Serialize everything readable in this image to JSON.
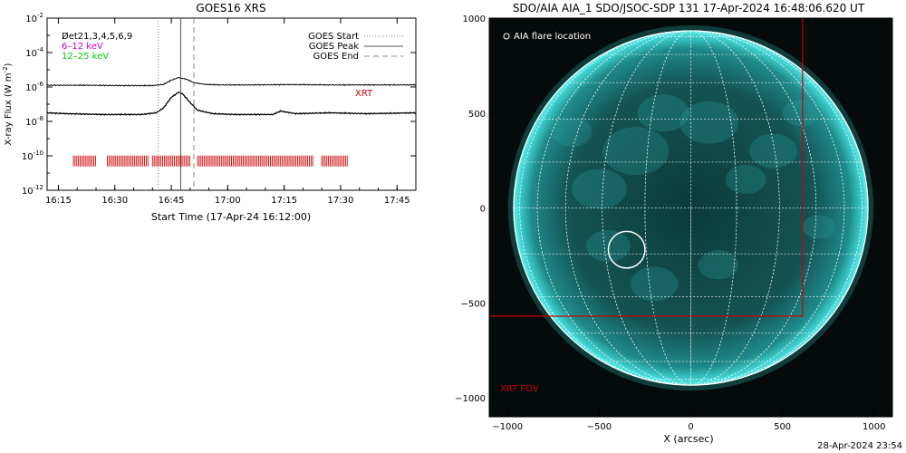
{
  "left_panel": {
    "title": "GOES16 XRS",
    "ylabel": "X-ray Flux (W m",
    "ylabel_sup": "-2",
    "ylabel_close": ")",
    "xlabel": "Start Time (17-Apr-24 16:12:00)",
    "legend_left": [
      {
        "text": "D̸et21,3,4,5,6,9",
        "color": "#000000"
      },
      {
        "text": "6–12 keV",
        "color": "#cc00cc"
      },
      {
        "text": "12–25 keV",
        "color": "#00cc00"
      }
    ],
    "legend_right": [
      {
        "text": "GOES Start",
        "dash": "dotted"
      },
      {
        "text": "GOES Peak",
        "dash": "solid"
      },
      {
        "text": "GOES End",
        "dash": "dashed"
      }
    ],
    "xrt_label": "XRT",
    "xrt_color": "#cc0000"
  },
  "right_panel": {
    "title": "SDO/AIA AIA_1 SDO/JSOC-SDP 131 17-Apr-2024 16:48:06.620 UT",
    "xlabel": "X (arcsec)",
    "flare_label": "AIA flare location",
    "fov_label": "XRT FOV",
    "fov_color": "#cc0000",
    "disk_color": "#1aa3a3"
  },
  "footer_timestamp": "28-Apr-2024 23:54",
  "chart_data": [
    {
      "type": "line",
      "title": "GOES16 XRS",
      "xlabel": "Start Time (17-Apr-24 16:12:00)",
      "ylabel": "X-ray Flux (W m^-2)",
      "x_unit": "minutes after 16:12",
      "xlim": [
        0,
        98
      ],
      "ylim_log10": [
        -12,
        -2
      ],
      "y_scale": "log",
      "x_tick_labels": [
        "16:15",
        "16:30",
        "16:45",
        "17:00",
        "17:15",
        "17:30",
        "17:45"
      ],
      "x_ticks": [
        3,
        18,
        33,
        48,
        63,
        78,
        93
      ],
      "y_tick_exponents": [
        -12,
        -10,
        -8,
        -6,
        -4,
        -2
      ],
      "goes_start": 29.5,
      "goes_peak": 35.5,
      "goes_end": 39.0,
      "series": [
        {
          "name": "Long channel",
          "x": [
            0,
            10,
            20,
            28,
            31,
            33,
            35,
            37,
            39,
            42,
            46,
            55,
            65,
            75,
            85,
            98
          ],
          "log10_y": [
            -5.9,
            -5.9,
            -5.92,
            -5.92,
            -5.85,
            -5.6,
            -5.45,
            -5.55,
            -5.75,
            -5.85,
            -5.88,
            -5.88,
            -5.86,
            -5.88,
            -5.88,
            -5.88
          ]
        },
        {
          "name": "Short channel",
          "x": [
            0,
            5,
            15,
            25,
            29,
            31,
            33,
            35,
            36,
            38,
            40,
            44,
            50,
            60,
            62,
            66,
            75,
            85,
            98
          ],
          "log10_y": [
            -7.5,
            -7.55,
            -7.6,
            -7.6,
            -7.5,
            -7.2,
            -6.6,
            -6.3,
            -6.4,
            -6.9,
            -7.35,
            -7.55,
            -7.6,
            -7.6,
            -7.4,
            -7.55,
            -7.5,
            -7.55,
            -7.5
          ]
        }
      ],
      "xrt_observation_intervals": [
        [
          7,
          13
        ],
        [
          16,
          27
        ],
        [
          28,
          38
        ],
        [
          40,
          71
        ],
        [
          73,
          80
        ]
      ],
      "xrt_log10_level": -10.3
    },
    {
      "type": "scatter",
      "title": "SDO/AIA AIA_1 SDO/JSOC-SDP 131 17-Apr-2024 16:48:06.620 UT",
      "xlabel": "X (arcsec)",
      "ylabel": "",
      "xlim": [
        -1100,
        1100
      ],
      "ylim": [
        -1100,
        1000
      ],
      "x_ticks": [
        -1000,
        -500,
        0,
        500,
        1000
      ],
      "y_ticks": [
        -1000,
        -500,
        0,
        500,
        1000
      ],
      "solar_radius": 950,
      "flare_location": {
        "x": -350,
        "y": -220,
        "radius": 100
      },
      "xrt_fov": {
        "x_range": [
          -1100,
          610
        ],
        "y_range": [
          -570,
          1100
        ]
      },
      "grid": true,
      "grid_spacing_deg": 15
    }
  ]
}
